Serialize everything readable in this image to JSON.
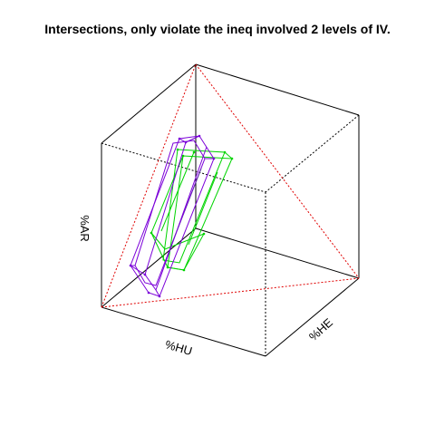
{
  "chart_data": {
    "type": "3d-wireframe",
    "title": "Intersections, only violate the ineq involved 2 levels of IV.",
    "axis_labels": {
      "x": "%HU",
      "y": "%HE",
      "z": "%AR"
    },
    "grid": false,
    "colors": {
      "box": "#000000",
      "simplex": "#e00000",
      "series_1": "#7b00d9",
      "series_2": "#00d400"
    }
  }
}
